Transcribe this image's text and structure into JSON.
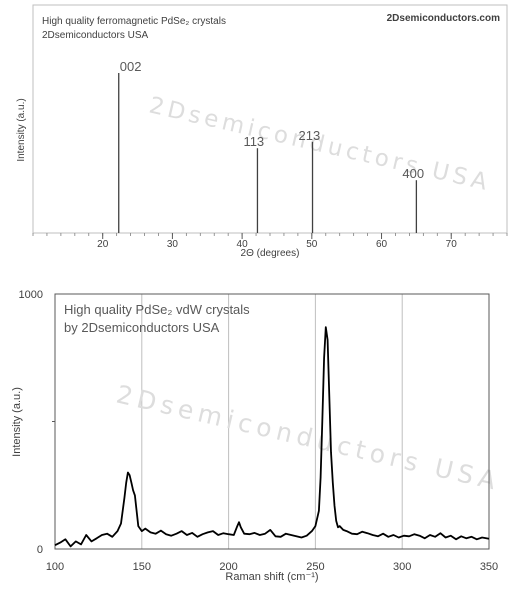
{
  "chart_data": [
    {
      "type": "bar",
      "title_lines": [
        "High quality ferromagnetic PdSe₂ crystals",
        "2Dsemiconductors USA"
      ],
      "brand": "2Dsemiconductors.com",
      "watermark": "2Dsemiconductors USA",
      "xlabel": "2Θ (degrees)",
      "ylabel": "Intensity (a.u.)",
      "xlim": [
        10,
        78
      ],
      "xticks": [
        20,
        30,
        40,
        50,
        60,
        70
      ],
      "x": [
        22.3,
        42.2,
        50.1,
        65.0
      ],
      "values": [
        1.0,
        0.53,
        0.57,
        0.33
      ],
      "peak_labels": [
        "002",
        "113",
        "213",
        "400"
      ],
      "grid": false
    },
    {
      "type": "line",
      "title_lines": [
        "High quality PdSe₂ vdW crystals",
        "by 2Dsemiconductors USA"
      ],
      "watermark": "2Dsemiconductors USA",
      "xlabel": "Raman shift (cm⁻¹)",
      "ylabel": "Intensity (a.u.)",
      "xlim": [
        100,
        350
      ],
      "ylim": [
        0,
        1000
      ],
      "xticks": [
        100,
        150,
        200,
        250,
        300,
        350
      ],
      "yticks": [
        0,
        1000
      ],
      "ytick_labels": [
        "0",
        "1000"
      ],
      "grid": true,
      "series": [
        {
          "x": [
            100,
            103,
            106,
            109,
            112,
            115,
            118,
            121,
            124,
            127,
            130,
            133,
            136,
            138,
            140,
            141,
            142,
            143,
            144,
            145,
            146,
            147,
            148,
            150,
            152,
            155,
            158,
            161,
            164,
            167,
            170,
            173,
            176,
            179,
            182,
            185,
            188,
            191,
            194,
            197,
            200,
            203,
            205,
            206,
            207,
            209,
            212,
            215,
            218,
            221,
            224,
            227,
            230,
            233,
            236,
            239,
            242,
            245,
            248,
            250,
            252,
            253,
            254,
            255,
            256,
            257,
            258,
            259,
            260,
            261,
            262,
            263,
            264,
            266,
            268,
            271,
            274,
            277,
            280,
            283,
            286,
            289,
            292,
            295,
            298,
            301,
            304,
            307,
            310,
            313,
            316,
            319,
            322,
            325,
            328,
            331,
            334,
            337,
            340,
            343,
            346,
            350
          ],
          "y": [
            15,
            25,
            38,
            10,
            30,
            18,
            55,
            30,
            42,
            55,
            60,
            48,
            70,
            100,
            200,
            260,
            300,
            290,
            260,
            230,
            210,
            150,
            90,
            70,
            80,
            65,
            60,
            72,
            58,
            52,
            60,
            70,
            55,
            63,
            48,
            58,
            65,
            70,
            55,
            62,
            58,
            55,
            90,
            105,
            85,
            60,
            58,
            63,
            55,
            60,
            75,
            50,
            48,
            60,
            55,
            50,
            45,
            52,
            70,
            90,
            150,
            280,
            500,
            750,
            870,
            820,
            600,
            380,
            260,
            170,
            110,
            85,
            90,
            75,
            70,
            60,
            58,
            68,
            62,
            55,
            50,
            60,
            48,
            55,
            45,
            52,
            50,
            58,
            52,
            42,
            55,
            48,
            62,
            45,
            52,
            38,
            50,
            42,
            48,
            38,
            45,
            40
          ]
        }
      ]
    }
  ]
}
